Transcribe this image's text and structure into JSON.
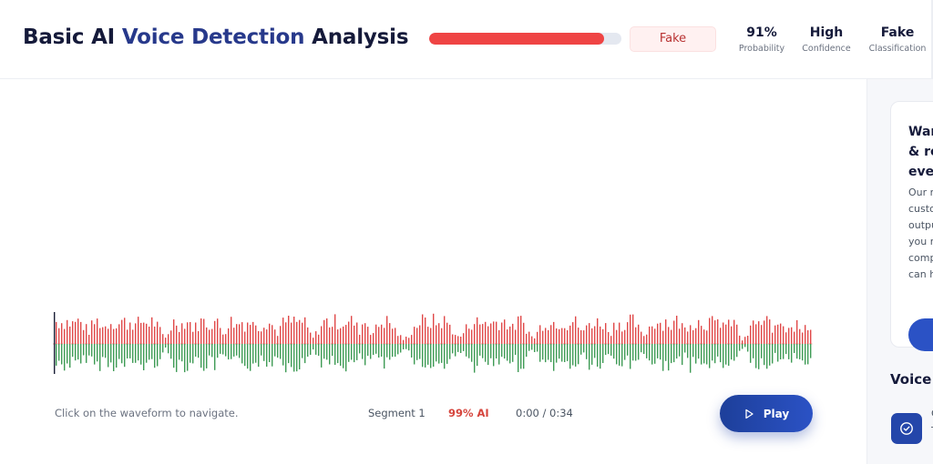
{
  "header": {
    "title_prefix": "Basic AI ",
    "title_accent": "Voice Detection",
    "title_suffix": " Analysis",
    "verdict": "Fake",
    "probability_fraction": 0.91,
    "stats": [
      {
        "value": "91%",
        "label": "Probability"
      },
      {
        "value": "High",
        "label": "Confidence"
      },
      {
        "value": "Fake",
        "label": "Classification"
      }
    ]
  },
  "player": {
    "hint": "Click on the waveform to navigate.",
    "segment": "Segment 1",
    "ai_percent": "99% AI",
    "time": "0:00 / 0:34",
    "play_label": "Play"
  },
  "sidebar": {
    "promo_heading_lines": [
      "Wan",
      "& re",
      "eve"
    ],
    "promo_body_lines": [
      "Our m",
      "custo",
      "outpu",
      "you r",
      "comp",
      "can h"
    ],
    "section_heading": "Voice",
    "item_fragment_top": "C",
    "item_fragment_bottom": "T"
  },
  "colors": {
    "fake_red": "#ef4444",
    "waveform_red": "#e04848",
    "waveform_green": "#3e9b55",
    "brand_blue": "#2446aa"
  },
  "icons": {
    "play": "play-icon",
    "check": "check-circle-icon"
  }
}
